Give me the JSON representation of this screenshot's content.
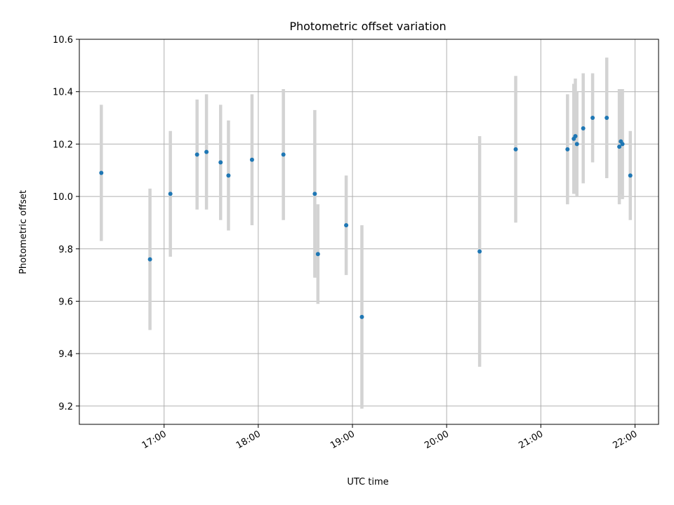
{
  "chart_data": {
    "type": "scatter",
    "title": "Photometric offset variation",
    "xlabel": "UTC time",
    "ylabel": "Photometric offset",
    "x_unit": "UTC time (HH:MM)",
    "xlim": [
      "16:06",
      "22:15"
    ],
    "ylim": [
      9.13,
      10.6
    ],
    "x_ticks": [
      "17:00",
      "18:00",
      "19:00",
      "20:00",
      "21:00",
      "22:00"
    ],
    "y_ticks": [
      9.2,
      9.4,
      9.6,
      9.8,
      10.0,
      10.2,
      10.4,
      10.6
    ],
    "y_tick_labels": [
      "9.2",
      "9.4",
      "9.6",
      "9.8",
      "10.0",
      "10.2",
      "10.4",
      "10.6"
    ],
    "grid": true,
    "colors": {
      "points": "#1f77b4",
      "errorbars": "#d3d3d3",
      "grid": "#b0b0b0",
      "axes": "#000000"
    },
    "points": [
      {
        "x": "16:20",
        "y": 10.09,
        "err": 0.26
      },
      {
        "x": "16:51",
        "y": 9.76,
        "err": 0.27
      },
      {
        "x": "17:04",
        "y": 10.01,
        "err": 0.24
      },
      {
        "x": "17:21",
        "y": 10.16,
        "err": 0.21
      },
      {
        "x": "17:27",
        "y": 10.17,
        "err": 0.22
      },
      {
        "x": "17:36",
        "y": 10.13,
        "err": 0.22
      },
      {
        "x": "17:41",
        "y": 10.08,
        "err": 0.21
      },
      {
        "x": "17:56",
        "y": 10.14,
        "err": 0.25
      },
      {
        "x": "18:16",
        "y": 10.16,
        "err": 0.25
      },
      {
        "x": "18:36",
        "y": 10.01,
        "err": 0.32
      },
      {
        "x": "18:38",
        "y": 9.78,
        "err": 0.19
      },
      {
        "x": "18:56",
        "y": 9.89,
        "err": 0.19
      },
      {
        "x": "19:06",
        "y": 9.54,
        "err": 0.35
      },
      {
        "x": "20:21",
        "y": 9.79,
        "err": 0.44
      },
      {
        "x": "20:44",
        "y": 10.18,
        "err": 0.28
      },
      {
        "x": "21:17",
        "y": 10.18,
        "err": 0.21
      },
      {
        "x": "21:21",
        "y": 10.22,
        "err": 0.21
      },
      {
        "x": "21:22",
        "y": 10.23,
        "err": 0.22
      },
      {
        "x": "21:23",
        "y": 10.2,
        "err": 0.2
      },
      {
        "x": "21:27",
        "y": 10.26,
        "err": 0.21
      },
      {
        "x": "21:33",
        "y": 10.3,
        "err": 0.17
      },
      {
        "x": "21:42",
        "y": 10.3,
        "err": 0.23
      },
      {
        "x": "21:50",
        "y": 10.19,
        "err": 0.22
      },
      {
        "x": "21:51",
        "y": 10.21,
        "err": 0.2
      },
      {
        "x": "21:52",
        "y": 10.2,
        "err": 0.21
      },
      {
        "x": "21:57",
        "y": 10.08,
        "err": 0.17
      }
    ]
  }
}
